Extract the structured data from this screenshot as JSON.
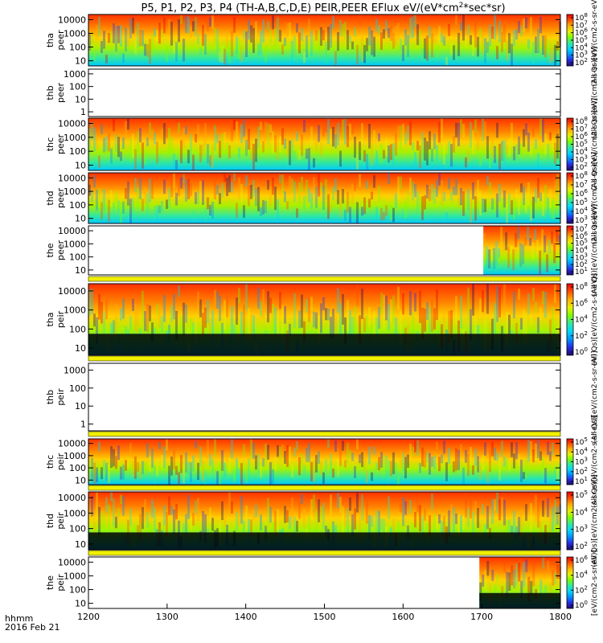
{
  "figure": {
    "title_main": "P5, P1, P2, P3, P4 (TH-A,B,C,D,E) PEIR,PEER EFlux eV/(eV*cm",
    "title_sup": "2",
    "title_end": "*sec*sr)",
    "bottom_left_line1": "hhmm",
    "bottom_left_line2": "2016 Feb 21",
    "bottom_right_label": "[eV/(cm2-s-sr-eV)] (All Qs)"
  },
  "colors": {
    "zero_flux": "#000000",
    "no_data": "#ffffff",
    "colormap": [
      "#1a0a6e",
      "#2a2ae0",
      "#0090ff",
      "#00d8ff",
      "#30e8a0",
      "#7cfc00",
      "#e8f000",
      "#ffb000",
      "#ff5000",
      "#e80000"
    ]
  },
  "chart_data": {
    "type": "heatmap",
    "x_axis": {
      "label": "hhmm",
      "date": "2016 Feb 21",
      "range": [
        1200,
        1800
      ],
      "major_ticks": [
        "1200",
        "1300",
        "1400",
        "1500",
        "1600",
        "1700",
        "1800"
      ]
    },
    "panels": [
      {
        "name": "tha_peer",
        "ylabel1": "tha",
        "ylabel2": "peer",
        "yticks": [
          "10",
          "100",
          "1000",
          "10000"
        ],
        "ylog": true,
        "cb_label": "(All Qs)[eV/(cm2-s-sr-eV)]",
        "cb_ticks": [
          "10",
          "10",
          "10",
          "10",
          "10",
          "10",
          "10"
        ],
        "cb_exp": [
          "2",
          "3",
          "4",
          "5",
          "6",
          "7",
          "8"
        ],
        "cb_range": [
          100.0,
          100000000.0
        ],
        "status": "data"
      },
      {
        "name": "thb_peer",
        "ylabel1": "thb",
        "ylabel2": "peer",
        "yticks": [
          "1",
          "10",
          "100",
          "1000"
        ],
        "ylog": true,
        "cb_label": "(All Qs)[eV/(cm2-s-sr-eV)]",
        "cb_ticks": [],
        "cb_exp": [],
        "status": "no data"
      },
      {
        "name": "thc_peer",
        "ylabel1": "thc",
        "ylabel2": "peer",
        "yticks": [
          "10",
          "100",
          "1000",
          "10000"
        ],
        "ylog": true,
        "cb_label": "(All Qs)[eV/(cm2-s-sr-eV)]",
        "cb_ticks": [
          "10",
          "10",
          "10",
          "10",
          "10",
          "10",
          "10"
        ],
        "cb_exp": [
          "2",
          "3",
          "4",
          "5",
          "6",
          "7",
          "8"
        ],
        "cb_range": [
          100.0,
          100000000.0
        ],
        "status": "data"
      },
      {
        "name": "thd_peer",
        "ylabel1": "thd",
        "ylabel2": "peer",
        "yticks": [
          "10",
          "100",
          "1000",
          "10000"
        ],
        "ylog": true,
        "cb_label": "(All Qs)[eV/(cm2-s-sr-eV)]",
        "cb_ticks": [
          "10",
          "10",
          "10",
          "10",
          "10",
          "10"
        ],
        "cb_exp": [
          "3",
          "4",
          "5",
          "6",
          "7",
          "8"
        ],
        "cb_range": [
          1000.0,
          100000000.0
        ],
        "status": "data"
      },
      {
        "name": "the_peer",
        "ylabel1": "the",
        "ylabel2": "peer",
        "yticks": [
          "10",
          "100",
          "1000",
          "10000"
        ],
        "ylog": true,
        "cb_label": "(All Qs)[eV/(cm2-s-sr-eV)]",
        "cb_ticks": [
          "10",
          "10",
          "10",
          "10",
          "10",
          "10",
          "10"
        ],
        "cb_exp": [
          "1",
          "2",
          "3",
          "4",
          "5",
          "6",
          "7"
        ],
        "cb_range": [
          10.0,
          10000000.0
        ],
        "status": "data from 1702"
      },
      {
        "name": "tha_peir",
        "ylabel1": "tha",
        "ylabel2": "peir",
        "yticks": [
          "10",
          "100",
          "1000",
          "10000"
        ],
        "ylog": true,
        "cb_label": "(All Qs)[eV/(cm2-s-sr-eV)]",
        "cb_ticks": [
          "10",
          "10",
          "10",
          "10",
          "10"
        ],
        "cb_exp": [
          "0",
          "2",
          "4",
          "6",
          "8"
        ],
        "cb_range": [
          1.0,
          100000000.0
        ],
        "status": "data"
      },
      {
        "name": "thb_peir",
        "ylabel1": "thb",
        "ylabel2": "peir",
        "yticks": [
          "1",
          "10",
          "100",
          "1000"
        ],
        "ylog": true,
        "cb_label": "(All Qs)[eV/(cm2-s-sr-eV)]",
        "cb_ticks": [],
        "cb_exp": [],
        "status": "no data"
      },
      {
        "name": "thc_peir",
        "ylabel1": "thc",
        "ylabel2": "peir",
        "yticks": [
          "10",
          "100",
          "1000",
          "10000"
        ],
        "ylog": true,
        "cb_label": "(All Qs)[eV/(cm2-s-sr-eV)]",
        "cb_ticks": [
          "10",
          "10",
          "10",
          "10",
          "10"
        ],
        "cb_exp": [
          "1",
          "2",
          "3",
          "4",
          "5"
        ],
        "cb_range": [
          10.0,
          100000.0
        ],
        "status": "data"
      },
      {
        "name": "thd_peir",
        "ylabel1": "thd",
        "ylabel2": "peir",
        "yticks": [
          "10",
          "100",
          "1000",
          "10000"
        ],
        "ylog": true,
        "cb_label": "(All Qs)[eV/(cm2-s-sr-eV)]",
        "cb_ticks": [
          "10",
          "10",
          "10",
          "10"
        ],
        "cb_exp": [
          "2",
          "3",
          "4",
          "5"
        ],
        "cb_range": [
          100.0,
          100000.0
        ],
        "status": "data"
      },
      {
        "name": "the_peir",
        "ylabel1": "the",
        "ylabel2": "peir",
        "yticks": [
          "10",
          "100",
          "1000",
          "10000"
        ],
        "ylog": true,
        "cb_label": "[eV/(cm2-s-sr-eV)]",
        "cb_ticks": [
          "10",
          "10",
          "10",
          "10"
        ],
        "cb_exp": [
          "0",
          "2",
          "4",
          "6"
        ],
        "cb_range": [
          1.0,
          1000000.0
        ],
        "status": "data from 1697"
      }
    ]
  }
}
